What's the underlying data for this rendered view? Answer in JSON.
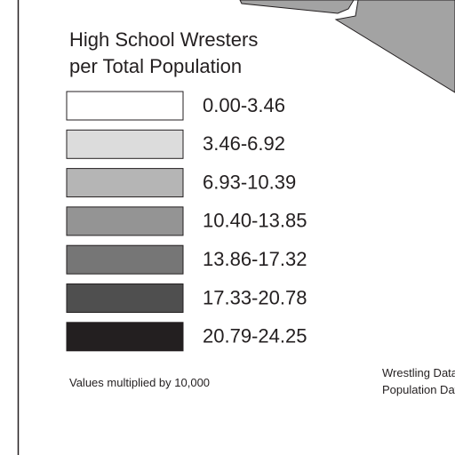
{
  "legend": {
    "title": [
      "High School Wresters",
      "per Total Population"
    ],
    "items": [
      {
        "label": "0.00-3.46",
        "color": "#ffffff"
      },
      {
        "label": "3.46-6.92",
        "color": "#dcdcdc"
      },
      {
        "label": "6.93-10.39",
        "color": "#b5b5b5"
      },
      {
        "label": "10.40-13.85",
        "color": "#949494"
      },
      {
        "label": "13.86-17.32",
        "color": "#767676"
      },
      {
        "label": "17.33-20.78",
        "color": "#4f4f4f"
      },
      {
        "label": "20.79-24.25",
        "color": "#231f20"
      }
    ],
    "note": "Values multiplied by 10,000"
  },
  "source": [
    "Wrestling Data",
    "Population Data"
  ]
}
